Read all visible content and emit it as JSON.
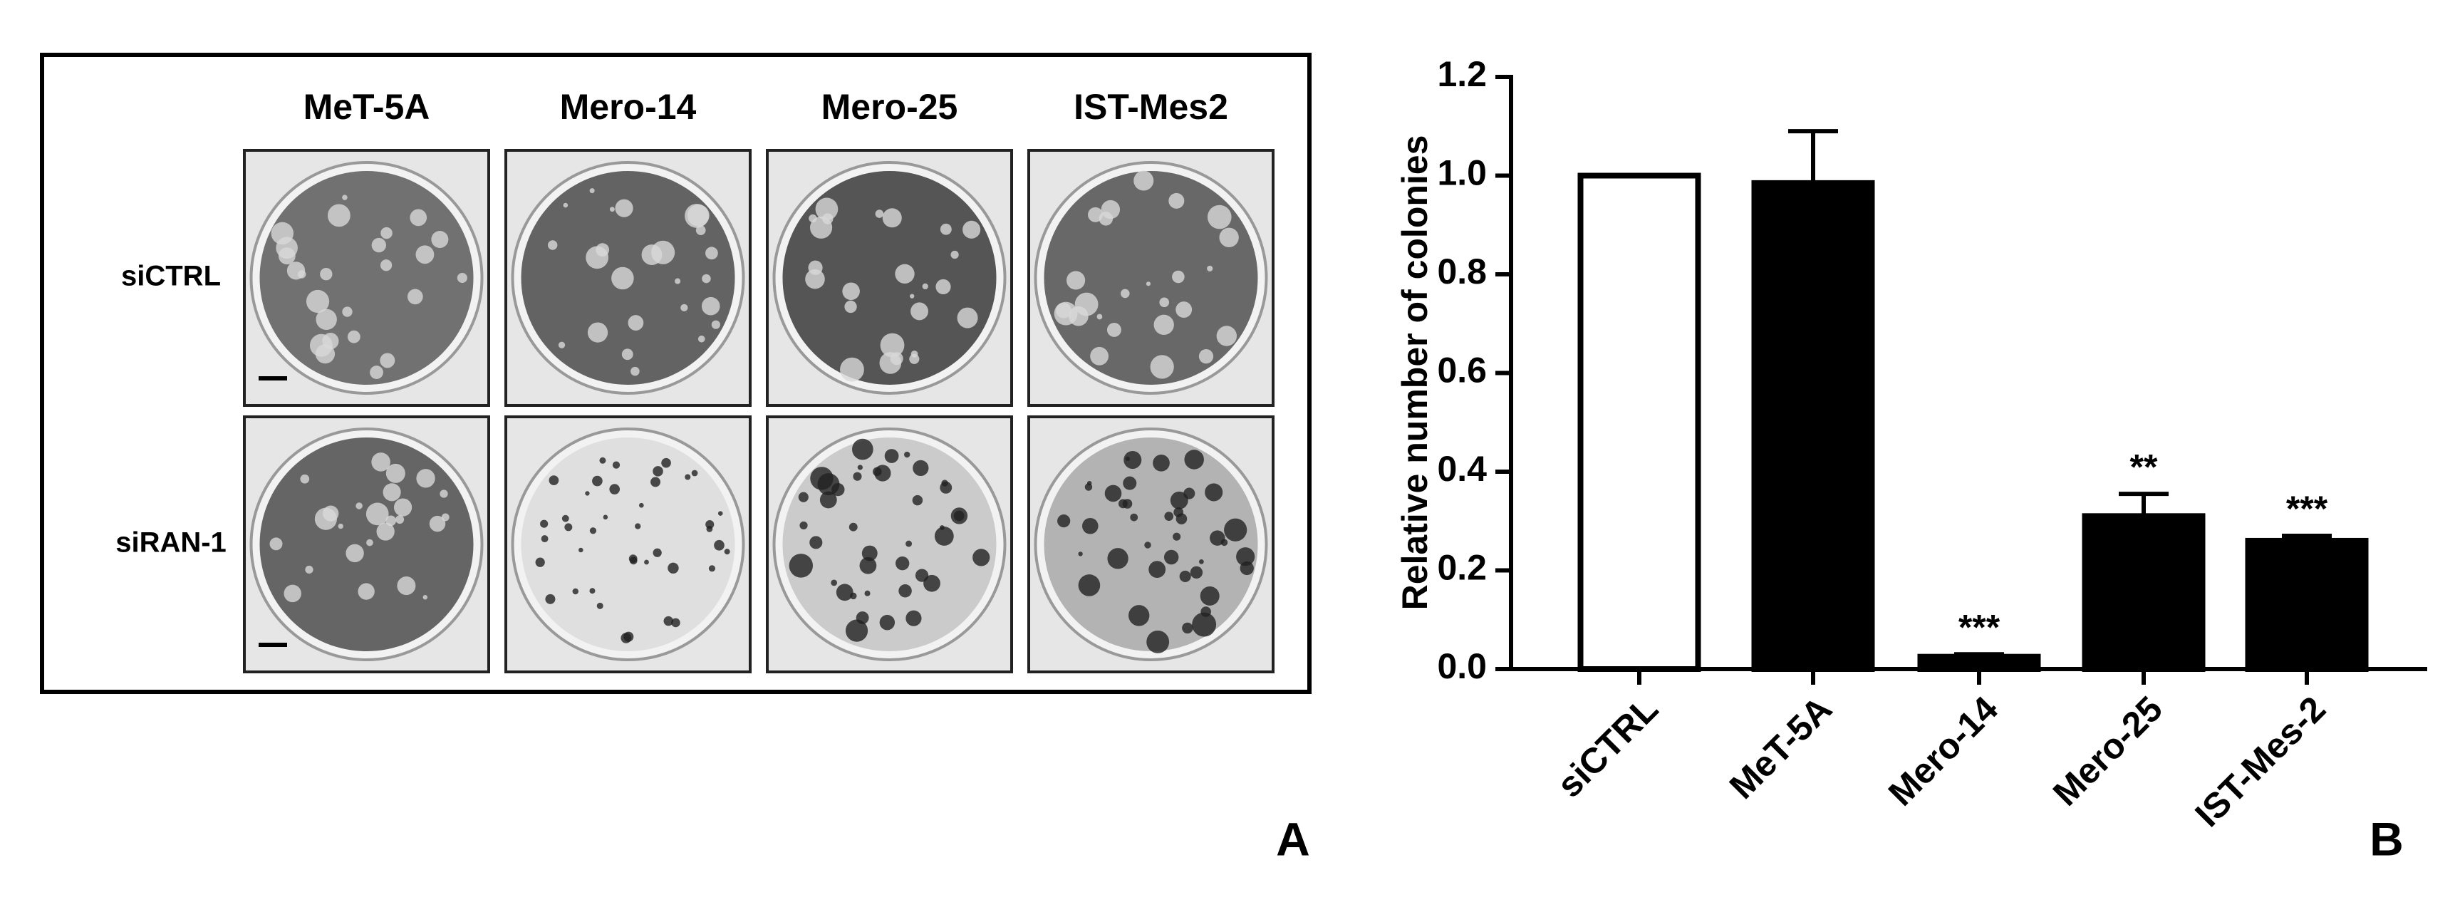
{
  "figure": {
    "columns": [
      "MeT-5A",
      "Mero-14",
      "Mero-25",
      "IST-Mes2"
    ],
    "rows": [
      "siCTRL",
      "siRAN-1"
    ],
    "panel_label": "A"
  },
  "chart_data": {
    "type": "bar",
    "panel_label": "B",
    "ylabel": "Relative number of colonies",
    "categories": [
      "siCTRL",
      "MeT-5A",
      "Mero-14",
      "Mero-25",
      "IST-Mes-2"
    ],
    "values": [
      1.0,
      0.985,
      0.025,
      0.31,
      0.26
    ],
    "errors": [
      null,
      0.105,
      0.005,
      0.045,
      0.01
    ],
    "colors": [
      "#ffffff",
      "#000000",
      "#000000",
      "#000000",
      "#000000"
    ],
    "significance": [
      null,
      null,
      "***",
      "**",
      "***"
    ],
    "ylim": [
      0,
      1.2
    ],
    "yticks": [
      {
        "value": 0,
        "label": "0.0"
      },
      0.2,
      0.4,
      0.6,
      0.8,
      {
        "value": 1,
        "label": "1.0"
      },
      1.2
    ]
  }
}
